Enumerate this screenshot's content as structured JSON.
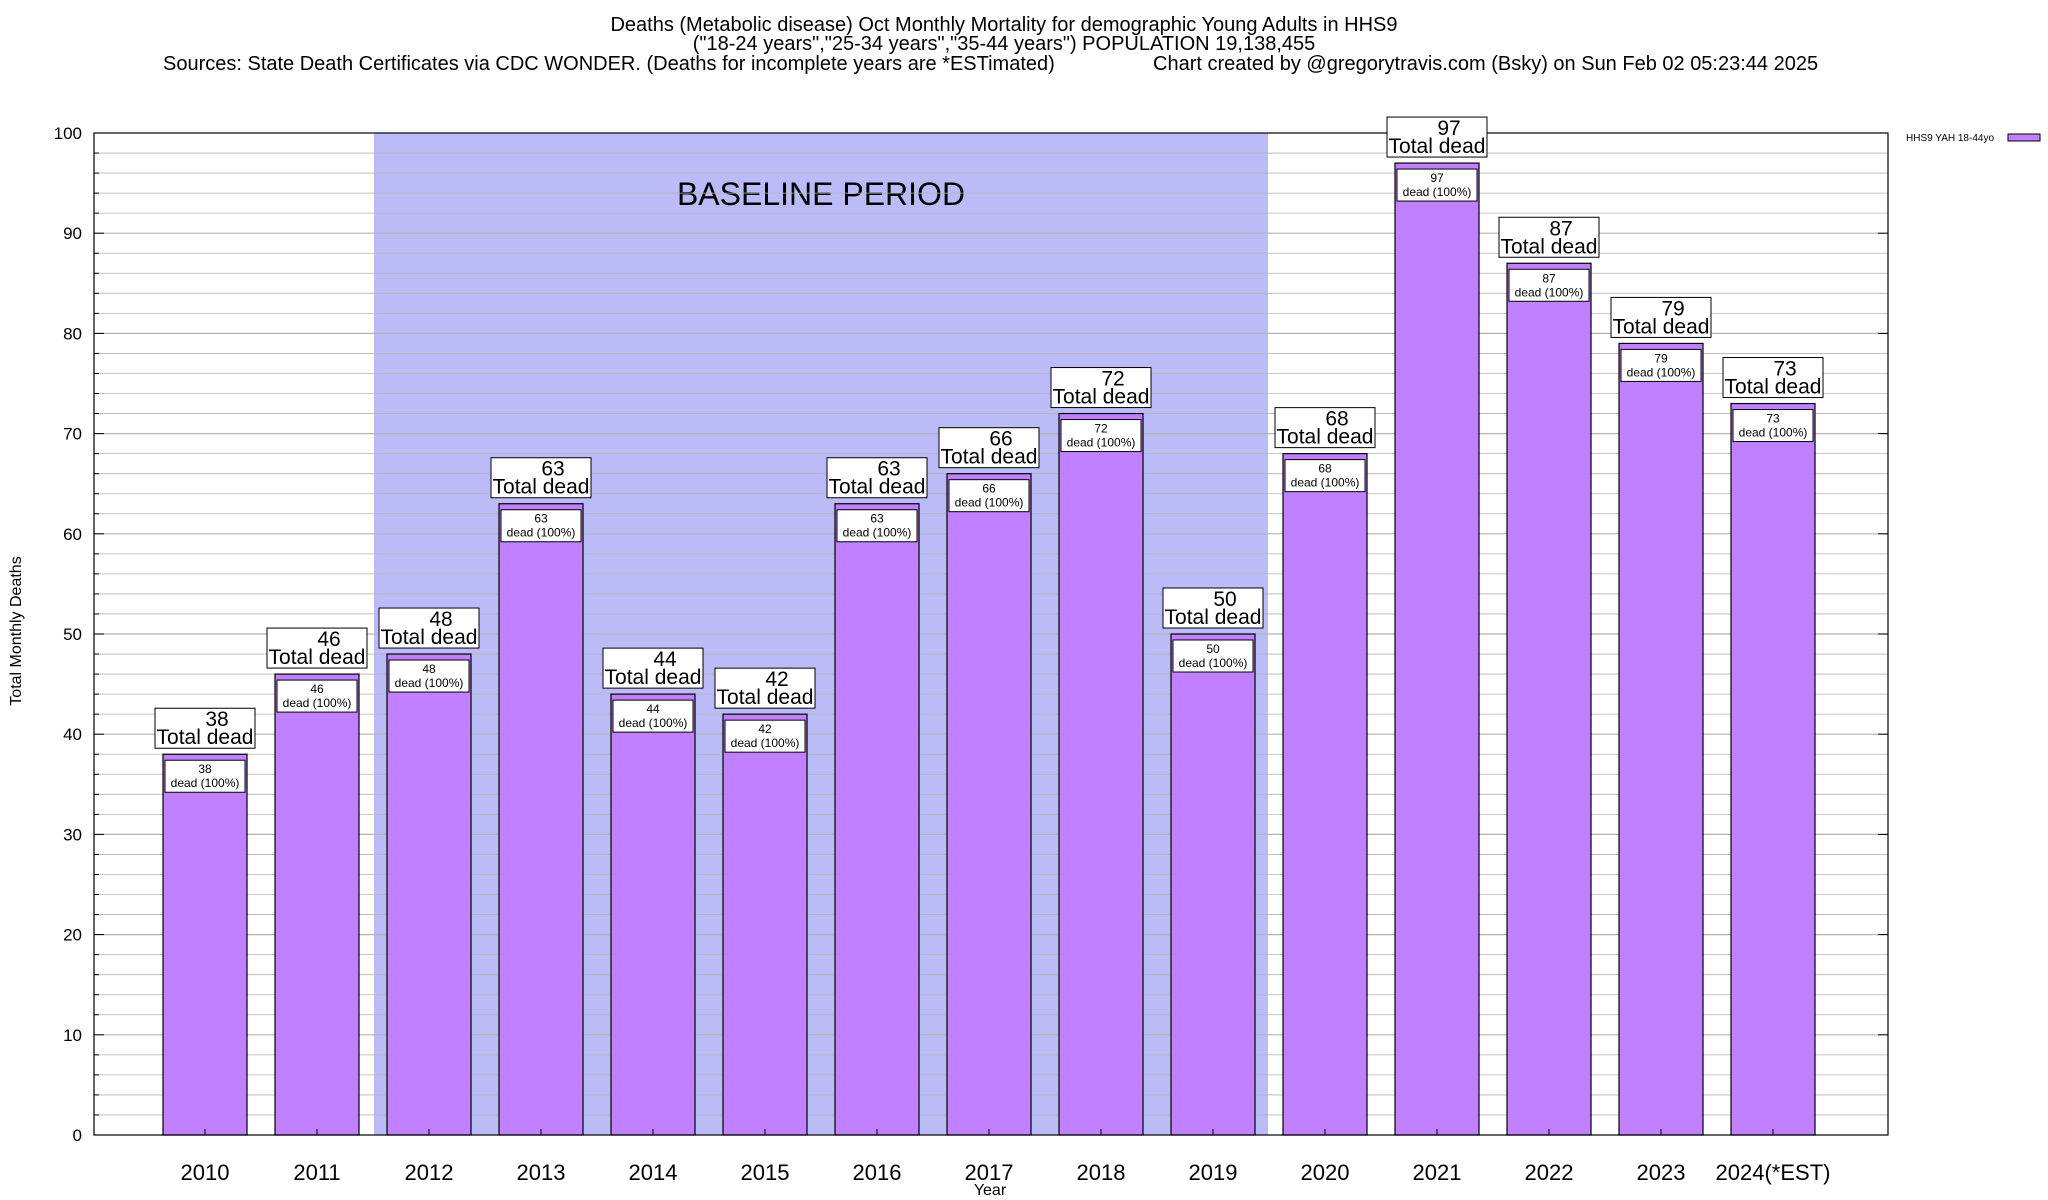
{
  "header": {
    "title_line1": "Deaths (Metabolic disease) Oct Monthly Mortality for demographic Young Adults in HHS9",
    "title_line2": "(\"18-24 years\",\"25-34 years\",\"35-44 years\") POPULATION 19,138,455",
    "source_text": "Sources: State Death Certificates via CDC WONDER. (Deaths for incomplete years are *ESTimated)",
    "credit_text": "Chart created by @gregorytravis.com (Bsky) on Sun Feb 02 05:23:44 2025"
  },
  "chart_data": {
    "type": "bar",
    "xlabel": "Year",
    "ylabel": "Total Monthly Deaths",
    "ylim": [
      0,
      100
    ],
    "yticks": [
      "0",
      "10",
      "20",
      "30",
      "40",
      "50",
      "60",
      "70",
      "80",
      "90",
      "100"
    ],
    "grid": true,
    "categories": [
      "2010",
      "2011",
      "2012",
      "2013",
      "2014",
      "2015",
      "2016",
      "2017",
      "2018",
      "2019",
      "2020",
      "2021",
      "2022",
      "2023",
      "2024(*EST)"
    ],
    "series": [
      {
        "name": "HHS9 YAH 18-44yo",
        "values": [
          38,
          46,
          48,
          63,
          44,
          42,
          63,
          66,
          72,
          50,
          68,
          97,
          87,
          79,
          73
        ]
      }
    ],
    "top_label_suffix": "Total dead",
    "inner_label_suffix": "dead (100%)",
    "baseline_period": {
      "label": "BASELINE PERIOD",
      "start_category": "2012",
      "end_category": "2019"
    },
    "legend_position": "top-right"
  },
  "colors": {
    "bar_fill": "#c080ff",
    "bar_stroke": "#000000",
    "baseline_fill": "#bbbbf8",
    "grid": "#b4b4b4"
  }
}
